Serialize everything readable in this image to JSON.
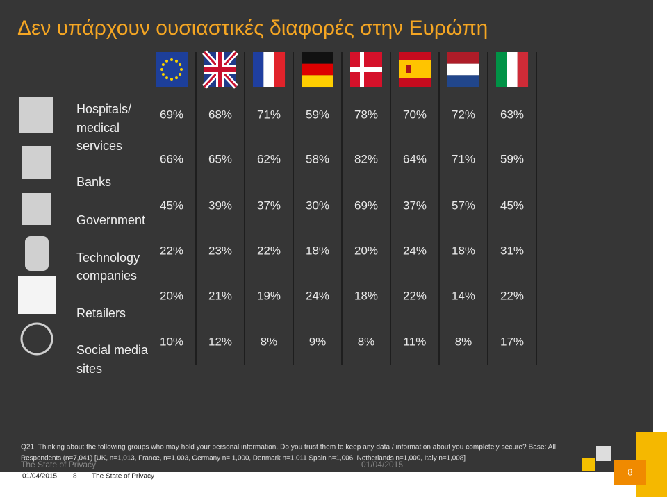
{
  "title": "Δεν υπάρχουν ουσιαστικές διαφορές στην Ευρώπη",
  "table": {
    "row_labels": [
      [
        "Hospitals/",
        "medical",
        "services"
      ],
      [
        "Banks"
      ],
      [
        "Government"
      ],
      [
        "Technology",
        "companies"
      ],
      [
        "Retailers"
      ],
      [
        "Social media",
        "sites"
      ]
    ],
    "rows": [
      [
        "69%",
        "68%",
        "71%",
        "59%",
        "78%",
        "70%",
        "72%",
        "63%"
      ],
      [
        "66%",
        "65%",
        "62%",
        "58%",
        "82%",
        "64%",
        "71%",
        "59%"
      ],
      [
        "45%",
        "39%",
        "37%",
        "30%",
        "69%",
        "37%",
        "57%",
        "45%"
      ],
      [
        "22%",
        "23%",
        "22%",
        "18%",
        "20%",
        "24%",
        "18%",
        "31%"
      ],
      [
        "20%",
        "21%",
        "19%",
        "24%",
        "18%",
        "22%",
        "14%",
        "22%"
      ],
      [
        "10%",
        "12%",
        "8%",
        "9%",
        "8%",
        "11%",
        "8%",
        "17%"
      ]
    ]
  },
  "footnote": [
    "Q21. Thinking about the following groups who may hold your personal information. Do you trust them to keep any data / information about you completely secure? Base: All",
    "Respondents (n=7,041) [UK, n=1,013, France, n=1,003, Germany n= 1,000, Denmark n=1,011 Spain n=1,006, Netherlands n=1,000, Italy n=1,008]"
  ],
  "footer": {
    "left": "The State of Privacy",
    "center": "01/04/2015",
    "page": "8"
  },
  "bottom_bar": {
    "date": "01/04/2015",
    "page": "8",
    "name": "The State of Privacy"
  }
}
